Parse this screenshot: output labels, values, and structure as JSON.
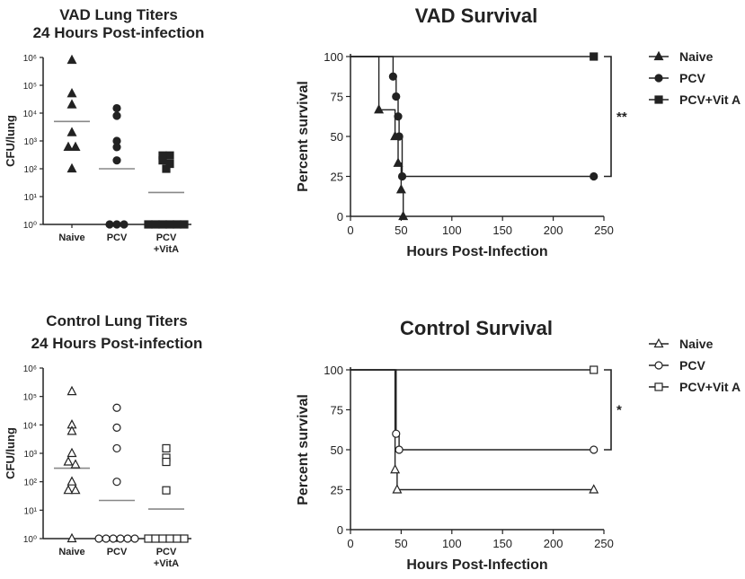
{
  "chart_data": [
    {
      "type": "scatter",
      "title": [
        "VAD Lung Titers",
        "24 Hours Post-infection"
      ],
      "ylabel": "CFU/lung",
      "yscale": "log",
      "ylim_exponents": [
        0,
        6
      ],
      "ytick_labels": [
        "10⁰",
        "10¹",
        "10²",
        "10³",
        "10⁴",
        "10⁵",
        "10⁶"
      ],
      "categories": [
        "Naive",
        "PCV",
        "PCV+VitA"
      ],
      "category_labels": [
        [
          "Naive"
        ],
        [
          "PCV"
        ],
        [
          "PCV",
          "+VitA"
        ]
      ],
      "markers": [
        "triangle",
        "circle",
        "square"
      ],
      "filled": true,
      "groups": [
        {
          "name": "Naive",
          "values": [
            800000,
            50000,
            20000,
            2000,
            600,
            600,
            100
          ],
          "mean": 5000
        },
        {
          "name": "PCV",
          "values": [
            15000,
            8000,
            1000,
            600,
            200,
            1,
            1,
            1
          ],
          "mean": 100
        },
        {
          "name": "PCV+VitA",
          "values": [
            300,
            300,
            200,
            150,
            100,
            1,
            1,
            1,
            1,
            1,
            1
          ],
          "mean": 14
        }
      ]
    },
    {
      "type": "line",
      "subtype": "survival-step",
      "title": "VAD Survival",
      "xlabel": "Hours Post-Infection",
      "ylabel": "Percent survival",
      "xlim": [
        0,
        250
      ],
      "ylim": [
        0,
        100
      ],
      "xticks": [
        "0",
        "50",
        "100",
        "150",
        "200",
        "250"
      ],
      "yticks": [
        "0",
        "25",
        "50",
        "75",
        "100"
      ],
      "filled": true,
      "significance": "**",
      "significance_between": [
        "PCV+Vit A",
        "PCV"
      ],
      "series": [
        {
          "name": "Naive",
          "marker": "triangle",
          "steps": [
            [
              0,
              100
            ],
            [
              28,
              100
            ],
            [
              28,
              66.7
            ],
            [
              44,
              66.7
            ],
            [
              44,
              50
            ],
            [
              47,
              50
            ],
            [
              47,
              33.3
            ],
            [
              50,
              33.3
            ],
            [
              50,
              16.7
            ],
            [
              52,
              16.7
            ],
            [
              52,
              0
            ]
          ],
          "points": [
            [
              28,
              66.7
            ],
            [
              44,
              50
            ],
            [
              47,
              33.3
            ],
            [
              50,
              16.7
            ],
            [
              52,
              0
            ]
          ]
        },
        {
          "name": "PCV",
          "marker": "circle",
          "steps": [
            [
              0,
              100
            ],
            [
              42,
              100
            ],
            [
              42,
              87.5
            ],
            [
              45,
              87.5
            ],
            [
              45,
              75
            ],
            [
              47,
              75
            ],
            [
              47,
              62.5
            ],
            [
              48,
              62.5
            ],
            [
              48,
              50
            ],
            [
              51,
              50
            ],
            [
              51,
              25
            ],
            [
              240,
              25
            ]
          ],
          "points": [
            [
              42,
              87.5
            ],
            [
              45,
              75
            ],
            [
              47,
              62.5
            ],
            [
              48,
              50
            ],
            [
              51,
              25
            ],
            [
              240,
              25
            ]
          ]
        },
        {
          "name": "PCV+Vit A",
          "marker": "square",
          "steps": [
            [
              0,
              100
            ],
            [
              240,
              100
            ]
          ],
          "points": [
            [
              240,
              100
            ]
          ]
        }
      ]
    },
    {
      "type": "scatter",
      "title": [
        "Control Lung Titers",
        "24 Hours Post-infection"
      ],
      "ylabel": "CFU/lung",
      "yscale": "log",
      "ylim_exponents": [
        0,
        6
      ],
      "ytick_labels": [
        "10⁰",
        "10¹",
        "10²",
        "10³",
        "10⁴",
        "10⁵",
        "10⁶"
      ],
      "categories": [
        "Naive",
        "PCV",
        "PCV+VitA"
      ],
      "category_labels": [
        [
          "Naive"
        ],
        [
          "PCV"
        ],
        [
          "PCV",
          "+VitA"
        ]
      ],
      "markers": [
        "triangle",
        "circle",
        "square"
      ],
      "filled": false,
      "groups": [
        {
          "name": "Naive",
          "values": [
            150000,
            10000,
            6000,
            1000,
            500,
            400,
            100,
            50,
            50,
            1
          ],
          "mean": 300
        },
        {
          "name": "PCV",
          "values": [
            40000,
            8000,
            1500,
            100,
            1,
            1,
            1,
            1,
            1,
            1
          ],
          "mean": 22
        },
        {
          "name": "PCV+VitA",
          "values": [
            1500,
            700,
            500,
            50,
            1,
            1,
            1,
            1,
            1,
            1
          ],
          "mean": 11
        }
      ]
    },
    {
      "type": "line",
      "subtype": "survival-step",
      "title": "Control Survival",
      "xlabel": "Hours Post-Infection",
      "ylabel": "Percent survival",
      "xlim": [
        0,
        250
      ],
      "ylim": [
        0,
        100
      ],
      "xticks": [
        "0",
        "50",
        "100",
        "150",
        "200",
        "250"
      ],
      "yticks": [
        "0",
        "25",
        "50",
        "75",
        "100"
      ],
      "filled": false,
      "significance": "*",
      "significance_between": [
        "PCV+Vit A",
        "PCV"
      ],
      "series": [
        {
          "name": "Naive",
          "marker": "triangle",
          "steps": [
            [
              0,
              100
            ],
            [
              44,
              100
            ],
            [
              44,
              37.5
            ],
            [
              46,
              37.5
            ],
            [
              46,
              25
            ],
            [
              240,
              25
            ]
          ],
          "points": [
            [
              44,
              37.5
            ],
            [
              46,
              25
            ],
            [
              240,
              25
            ]
          ]
        },
        {
          "name": "PCV",
          "marker": "circle",
          "steps": [
            [
              0,
              100
            ],
            [
              45,
              100
            ],
            [
              45,
              60
            ],
            [
              48,
              60
            ],
            [
              48,
              50
            ],
            [
              240,
              50
            ]
          ],
          "points": [
            [
              45,
              60
            ],
            [
              48,
              50
            ],
            [
              240,
              50
            ]
          ]
        },
        {
          "name": "PCV+Vit A",
          "marker": "square",
          "steps": [
            [
              0,
              100
            ],
            [
              240,
              100
            ]
          ],
          "points": [
            [
              240,
              100
            ]
          ]
        }
      ]
    }
  ],
  "colors": {
    "ink": "#222222",
    "mean_line": "#888888"
  }
}
